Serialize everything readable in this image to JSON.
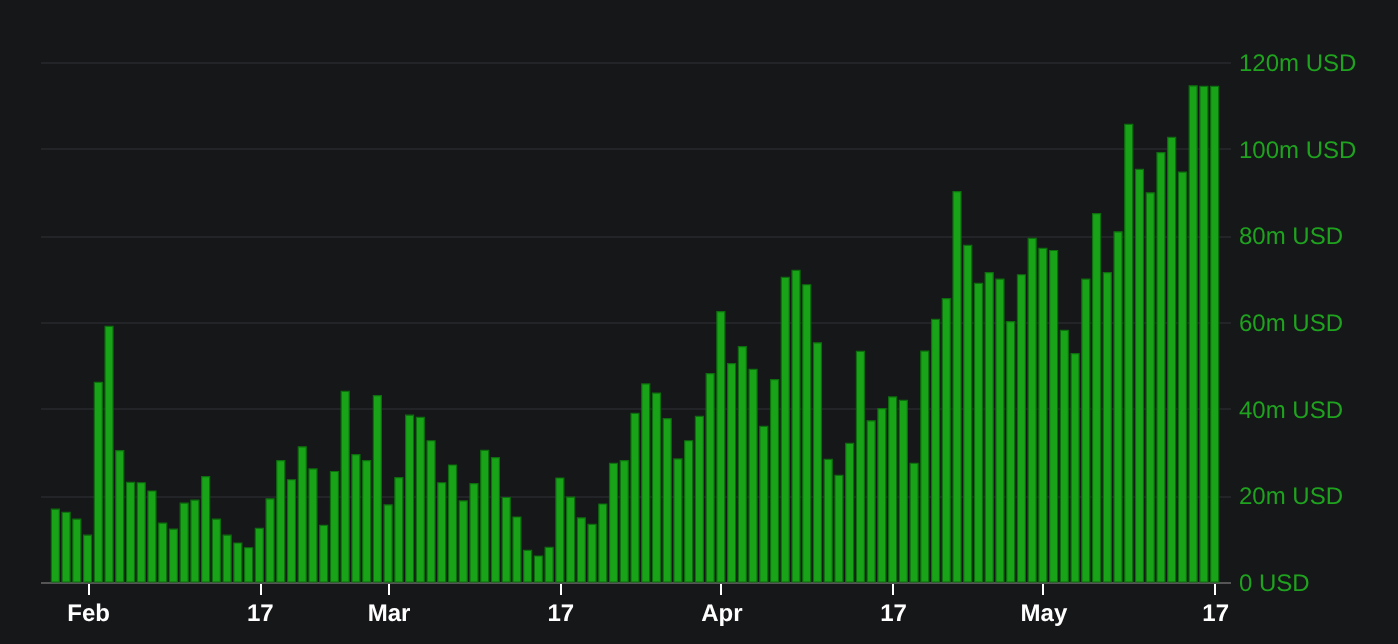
{
  "chart_data": {
    "type": "bar",
    "x": [
      "--01-29",
      "--01-30",
      "--01-31",
      "--02-01",
      "--02-02",
      "--02-03",
      "--02-04",
      "--02-05",
      "--02-06",
      "--02-07",
      "--02-08",
      "--02-09",
      "--02-10",
      "--02-11",
      "--02-12",
      "--02-13",
      "--02-14",
      "--02-15",
      "--02-16",
      "--02-17",
      "--02-18",
      "--02-19",
      "--02-20",
      "--02-21",
      "--02-22",
      "--02-23",
      "--02-24",
      "--02-25",
      "--02-26",
      "--02-27",
      "--02-28",
      "--03-01",
      "--03-02",
      "--03-03",
      "--03-04",
      "--03-05",
      "--03-06",
      "--03-07",
      "--03-08",
      "--03-09",
      "--03-10",
      "--03-11",
      "--03-12",
      "--03-13",
      "--03-14",
      "--03-15",
      "--03-16",
      "--03-17",
      "--03-18",
      "--03-19",
      "--03-20",
      "--03-21",
      "--03-22",
      "--03-23",
      "--03-24",
      "--03-25",
      "--03-26",
      "--03-27",
      "--03-28",
      "--03-29",
      "--03-30",
      "--03-31",
      "--04-01",
      "--04-02",
      "--04-03",
      "--04-04",
      "--04-05",
      "--04-06",
      "--04-07",
      "--04-08",
      "--04-09",
      "--04-10",
      "--04-11",
      "--04-12",
      "--04-13",
      "--04-14",
      "--04-15",
      "--04-16",
      "--04-17",
      "--04-18",
      "--04-19",
      "--04-20",
      "--04-21",
      "--04-22",
      "--04-23",
      "--04-24",
      "--04-25",
      "--04-26",
      "--04-27",
      "--04-28",
      "--04-29",
      "--04-30",
      "--05-01",
      "--05-02",
      "--05-03",
      "--05-04",
      "--05-05",
      "--05-06",
      "--05-07",
      "--05-08",
      "--05-09",
      "--05-10",
      "--05-11",
      "--05-12",
      "--05-13",
      "--05-14",
      "--05-15",
      "--05-16",
      "--05-17"
    ],
    "values": [
      16.8,
      16.1,
      14.5,
      10.8,
      46.1,
      59.0,
      30.3,
      23.0,
      22.9,
      21.0,
      13.6,
      12.2,
      18.2,
      18.9,
      24.3,
      14.5,
      10.8,
      9.0,
      7.9,
      12.4,
      19.2,
      28.0,
      23.6,
      31.2,
      26.1,
      13.1,
      25.5,
      44.0,
      29.4,
      28.0,
      43.0,
      17.8,
      24.1,
      38.5,
      38.0,
      32.6,
      22.9,
      27.0,
      18.7,
      22.7,
      30.4,
      28.7,
      19.5,
      15.0,
      7.3,
      6.0,
      8.0,
      24.0,
      19.6,
      14.8,
      13.3,
      18.0,
      27.4,
      28.0,
      38.9,
      45.7,
      43.6,
      37.7,
      28.4,
      32.6,
      38.2,
      48.1,
      62.4,
      50.4,
      54.3,
      49.1,
      35.9,
      46.7,
      70.3,
      71.9,
      68.6,
      55.2,
      28.3,
      24.6,
      32.0,
      53.2,
      37.2,
      40.0,
      42.7,
      41.9,
      27.4,
      53.3,
      60.6,
      65.4,
      90.1,
      77.7,
      68.9,
      71.4,
      69.9,
      60.1,
      70.9,
      79.3,
      77.0,
      76.5,
      58.1,
      52.7,
      69.9,
      85.0,
      71.4,
      80.8,
      105.6,
      95.2,
      89.8,
      99.1,
      102.6,
      94.6,
      114.5,
      114.4,
      114.4
    ],
    "color": "#19a319",
    "xlim": [
      "--01-28T12:00",
      "--05-17T12:00"
    ],
    "xticks": [
      {
        "value": "--02-01",
        "label": "Feb"
      },
      {
        "value": "--02-17",
        "label": "17"
      },
      {
        "value": "--03-01",
        "label": "Mar"
      },
      {
        "value": "--03-17",
        "label": "17"
      },
      {
        "value": "--04-01",
        "label": "Apr"
      },
      {
        "value": "--04-17",
        "label": "17"
      },
      {
        "value": "--05-01",
        "label": "May"
      },
      {
        "value": "--05-17",
        "label": "17"
      }
    ],
    "ylim": [
      0,
      120
    ],
    "yticks": [
      {
        "value": 0,
        "label": "0 USD"
      },
      {
        "value": 20,
        "label": "20m USD"
      },
      {
        "value": 40,
        "label": "40m USD"
      },
      {
        "value": 60,
        "label": "60m USD"
      },
      {
        "value": 80,
        "label": "80m USD"
      },
      {
        "value": 100,
        "label": "100m USD"
      },
      {
        "value": 120,
        "label": "120m USD"
      }
    ],
    "grid": "y"
  }
}
